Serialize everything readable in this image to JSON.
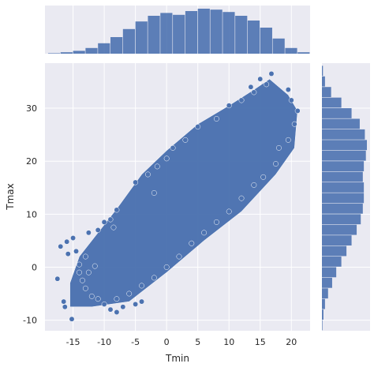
{
  "chart_data": {
    "type": "scatter",
    "subtype": "jointplot",
    "xlabel": "Tmin",
    "ylabel": "Tmax",
    "xlim": [
      -19.5,
      23
    ],
    "ylim": [
      -12,
      38.5
    ],
    "xticks": [
      "-15",
      "-10",
      "-5",
      "0",
      "5",
      "10",
      "15",
      "20"
    ],
    "yticks": [
      "-10",
      "0",
      "10",
      "20",
      "30"
    ],
    "grid": true,
    "colors": {
      "marker": "#4c72b0",
      "marker_edge": "#ffffff",
      "panel_background": "#eaeaf2",
      "grid": "#ffffff"
    },
    "series": [
      {
        "points": [
          [
            -17.5,
            -2.2
          ],
          [
            -16.5,
            -6.5
          ],
          [
            -16.3,
            -7.5
          ],
          [
            -15.2,
            -9.8
          ],
          [
            -17.0,
            3.9
          ],
          [
            -16.0,
            4.8
          ],
          [
            -15.0,
            5.5
          ],
          [
            -14.0,
            -1.0
          ],
          [
            -13.5,
            -2.5
          ],
          [
            -13.0,
            -4.0
          ],
          [
            -12.0,
            -5.5
          ],
          [
            -11.0,
            -6.0
          ],
          [
            -10.0,
            -7.0
          ],
          [
            -15.8,
            2.5
          ],
          [
            -14.5,
            3.0
          ],
          [
            -14.0,
            0.5
          ],
          [
            -13.0,
            2.0
          ],
          [
            -12.5,
            -1.0
          ],
          [
            -11.5,
            0.2
          ],
          [
            -12.5,
            6.5
          ],
          [
            -11.0,
            7.0
          ],
          [
            -10.0,
            8.5
          ],
          [
            -9.0,
            9.0
          ],
          [
            -8.0,
            10.8
          ],
          [
            -8.5,
            7.5
          ],
          [
            -9.0,
            -8.0
          ],
          [
            -8.0,
            -8.5
          ],
          [
            -7.0,
            -7.5
          ],
          [
            -5.0,
            -7.0
          ],
          [
            -4.0,
            -6.5
          ],
          [
            -5.0,
            16.0
          ],
          [
            -3.0,
            17.5
          ],
          [
            -1.5,
            19.0
          ],
          [
            0.0,
            20.5
          ],
          [
            -2.0,
            14.0
          ],
          [
            1.0,
            22.5
          ],
          [
            3.0,
            24.0
          ],
          [
            5.0,
            26.5
          ],
          [
            8.0,
            28.0
          ],
          [
            10.0,
            30.5
          ],
          [
            12.0,
            31.5
          ],
          [
            14.0,
            33.0
          ],
          [
            16.0,
            34.5
          ],
          [
            16.8,
            36.5
          ],
          [
            15.0,
            35.5
          ],
          [
            13.5,
            34.0
          ],
          [
            19.5,
            33.5
          ],
          [
            20.0,
            31.5
          ],
          [
            21.0,
            29.5
          ],
          [
            20.5,
            27.0
          ],
          [
            19.5,
            24.0
          ],
          [
            18.0,
            22.5
          ],
          [
            17.5,
            19.5
          ],
          [
            15.5,
            17.0
          ],
          [
            14.0,
            15.5
          ],
          [
            12.0,
            13.0
          ],
          [
            10.0,
            10.5
          ],
          [
            8.0,
            8.5
          ],
          [
            6.0,
            6.5
          ],
          [
            4.0,
            4.5
          ],
          [
            2.0,
            2.0
          ],
          [
            0.0,
            0.0
          ],
          [
            -2.0,
            -2.0
          ],
          [
            -4.0,
            -3.5
          ],
          [
            -6.0,
            -5.0
          ],
          [
            -8.0,
            -6.0
          ]
        ]
      }
    ],
    "marginal_x": {
      "type": "histogram",
      "bin_edges": [
        -19,
        -17,
        -15,
        -13,
        -11,
        -9,
        -7,
        -5,
        -3,
        -1,
        1,
        3,
        5,
        7,
        9,
        11,
        13,
        15,
        17,
        19,
        21,
        23
      ],
      "counts": [
        0.01,
        0.03,
        0.06,
        0.12,
        0.22,
        0.35,
        0.52,
        0.68,
        0.8,
        0.86,
        0.82,
        0.9,
        0.95,
        0.93,
        0.88,
        0.8,
        0.7,
        0.55,
        0.32,
        0.12,
        0.03
      ]
    },
    "marginal_y": {
      "type": "histogram",
      "bin_edges": [
        -12,
        -10,
        -8,
        -6,
        -4,
        -2,
        0,
        2,
        4,
        6,
        8,
        10,
        12,
        14,
        16,
        18,
        20,
        22,
        24,
        26,
        28,
        30,
        32,
        34,
        36,
        38
      ],
      "counts": [
        0.01,
        0.03,
        0.06,
        0.12,
        0.2,
        0.28,
        0.38,
        0.48,
        0.58,
        0.68,
        0.76,
        0.8,
        0.82,
        0.82,
        0.8,
        0.82,
        0.86,
        0.88,
        0.84,
        0.74,
        0.58,
        0.38,
        0.18,
        0.06,
        0.02
      ]
    }
  }
}
